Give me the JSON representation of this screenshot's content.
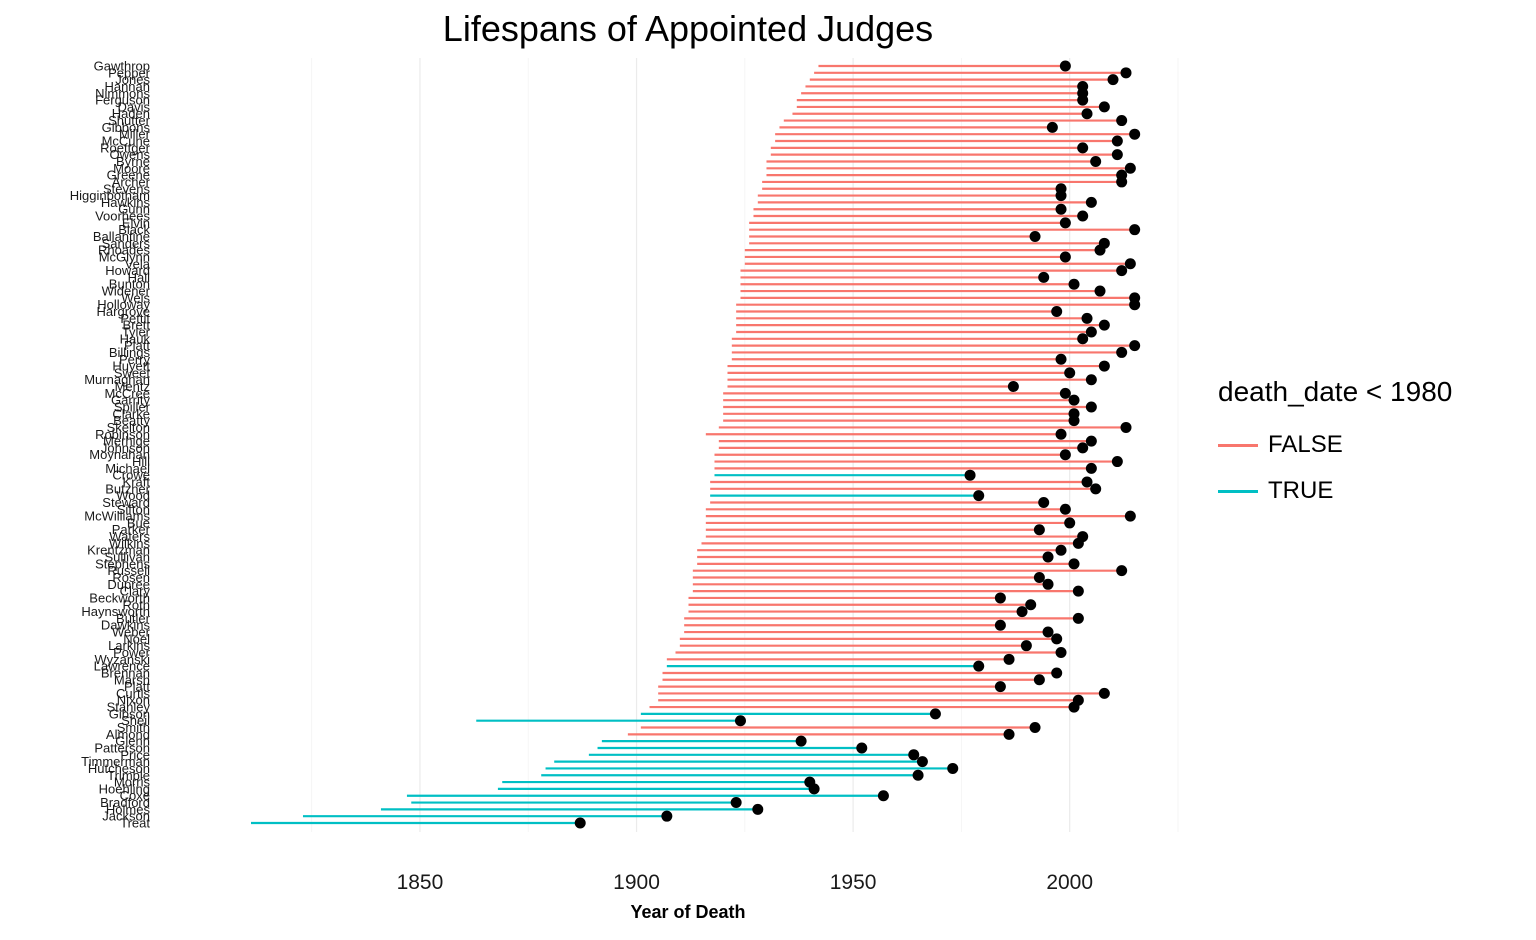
{
  "chart_data": {
    "type": "dumbbell",
    "title": "Lifespans of Appointed Judges",
    "xlabel": "Year of Death",
    "ylabel": "",
    "xlim": [
      1808,
      2016
    ],
    "xticks": [
      1850,
      1900,
      1950,
      2000
    ],
    "grid": true,
    "legend": {
      "title": "death_date < 1980",
      "placement": "right",
      "entries": [
        {
          "label": "FALSE",
          "color": "#f8766d"
        },
        {
          "label": "TRUE",
          "color": "#00bfc4"
        }
      ]
    },
    "judges": [
      {
        "name": "Gawthrop",
        "birth": 1942,
        "death": 1999
      },
      {
        "name": "Pepper",
        "birth": 1941,
        "death": 2013
      },
      {
        "name": "Jones",
        "birth": 1940,
        "death": 2010
      },
      {
        "name": "Hannah",
        "birth": 1939,
        "death": 2003
      },
      {
        "name": "Nimmons",
        "birth": 1938,
        "death": 2003
      },
      {
        "name": "Ferguson",
        "birth": 1937,
        "death": 2003
      },
      {
        "name": "Davis",
        "birth": 1937,
        "death": 2008
      },
      {
        "name": "Haden",
        "birth": 1936,
        "death": 2004
      },
      {
        "name": "Shutter",
        "birth": 1934,
        "death": 2012
      },
      {
        "name": "Gibbons",
        "birth": 1933,
        "death": 1996
      },
      {
        "name": "Miller",
        "birth": 1932,
        "death": 2015
      },
      {
        "name": "McCune",
        "birth": 1932,
        "death": 2011
      },
      {
        "name": "Roettger",
        "birth": 1931,
        "death": 2003
      },
      {
        "name": "Owens",
        "birth": 1931,
        "death": 2011
      },
      {
        "name": "Byrne",
        "birth": 1930,
        "death": 2006
      },
      {
        "name": "Moore",
        "birth": 1930,
        "death": 2014
      },
      {
        "name": "Greene",
        "birth": 1930,
        "death": 2012
      },
      {
        "name": "Archer",
        "birth": 1929,
        "death": 2012
      },
      {
        "name": "Stevens",
        "birth": 1929,
        "death": 1998
      },
      {
        "name": "Higginbotham",
        "birth": 1928,
        "death": 1998
      },
      {
        "name": "Hawkins",
        "birth": 1928,
        "death": 2005
      },
      {
        "name": "Gunn",
        "birth": 1927,
        "death": 1998
      },
      {
        "name": "Voorhees",
        "birth": 1927,
        "death": 2003
      },
      {
        "name": "Elvin",
        "birth": 1926,
        "death": 1999
      },
      {
        "name": "Black",
        "birth": 1926,
        "death": 2015
      },
      {
        "name": "Ballantine",
        "birth": 1926,
        "death": 1992
      },
      {
        "name": "Sanders",
        "birth": 1926,
        "death": 2008
      },
      {
        "name": "Rhoades",
        "birth": 1925,
        "death": 2007
      },
      {
        "name": "McGlynn",
        "birth": 1925,
        "death": 1999
      },
      {
        "name": "Vela",
        "birth": 1925,
        "death": 2014
      },
      {
        "name": "Howard",
        "birth": 1924,
        "death": 2012
      },
      {
        "name": "Hall",
        "birth": 1924,
        "death": 1994
      },
      {
        "name": "Bunton",
        "birth": 1924,
        "death": 2001
      },
      {
        "name": "Widener",
        "birth": 1924,
        "death": 2007
      },
      {
        "name": "Weis",
        "birth": 1924,
        "death": 2015
      },
      {
        "name": "Holloway",
        "birth": 1923,
        "death": 2015
      },
      {
        "name": "Hargrove",
        "birth": 1923,
        "death": 1997
      },
      {
        "name": "Pettit",
        "birth": 1923,
        "death": 2004
      },
      {
        "name": "Brett",
        "birth": 1923,
        "death": 2008
      },
      {
        "name": "Tyler",
        "birth": 1923,
        "death": 2005
      },
      {
        "name": "Hauk",
        "birth": 1922,
        "death": 2003
      },
      {
        "name": "Platt",
        "birth": 1922,
        "death": 2015
      },
      {
        "name": "Billings",
        "birth": 1922,
        "death": 2012
      },
      {
        "name": "Perry",
        "birth": 1922,
        "death": 1998
      },
      {
        "name": "Huyett",
        "birth": 1921,
        "death": 2008
      },
      {
        "name": "Sweet",
        "birth": 1921,
        "death": 2000
      },
      {
        "name": "Murnaghan",
        "birth": 1921,
        "death": 2005
      },
      {
        "name": "Mentz",
        "birth": 1921,
        "death": 1987
      },
      {
        "name": "McCree",
        "birth": 1920,
        "death": 1999
      },
      {
        "name": "Garrity",
        "birth": 1920,
        "death": 2001
      },
      {
        "name": "Spiller",
        "birth": 1920,
        "death": 2005
      },
      {
        "name": "Clarke",
        "birth": 1920,
        "death": 2001
      },
      {
        "name": "Beatty",
        "birth": 1920,
        "death": 2001
      },
      {
        "name": "Skelton",
        "birth": 1919,
        "death": 2013
      },
      {
        "name": "Robinson",
        "birth": 1916,
        "death": 1998
      },
      {
        "name": "Merhige",
        "birth": 1919,
        "death": 2005
      },
      {
        "name": "Johnson",
        "birth": 1919,
        "death": 2003
      },
      {
        "name": "Moynahan",
        "birth": 1918,
        "death": 1999
      },
      {
        "name": "Hill",
        "birth": 1918,
        "death": 2011
      },
      {
        "name": "Michael",
        "birth": 1918,
        "death": 2005
      },
      {
        "name": "Crowe",
        "birth": 1918,
        "death": 1977
      },
      {
        "name": "Kraft",
        "birth": 1917,
        "death": 2004
      },
      {
        "name": "Butzner",
        "birth": 1917,
        "death": 2006
      },
      {
        "name": "Wood",
        "birth": 1917,
        "death": 1979
      },
      {
        "name": "Steward",
        "birth": 1917,
        "death": 1994
      },
      {
        "name": "Sifton",
        "birth": 1916,
        "death": 1999
      },
      {
        "name": "McWilliams",
        "birth": 1916,
        "death": 2014
      },
      {
        "name": "Bue",
        "birth": 1916,
        "death": 2000
      },
      {
        "name": "Parker",
        "birth": 1916,
        "death": 1993
      },
      {
        "name": "Waters",
        "birth": 1916,
        "death": 2003
      },
      {
        "name": "Wilkins",
        "birth": 1915,
        "death": 2002
      },
      {
        "name": "Krentzman",
        "birth": 1914,
        "death": 1998
      },
      {
        "name": "Sullivan",
        "birth": 1914,
        "death": 1995
      },
      {
        "name": "Stephens",
        "birth": 1914,
        "death": 2001
      },
      {
        "name": "Russell",
        "birth": 1913,
        "death": 2012
      },
      {
        "name": "Rosen",
        "birth": 1913,
        "death": 1993
      },
      {
        "name": "Dupree",
        "birth": 1913,
        "death": 1995
      },
      {
        "name": "Clary",
        "birth": 1913,
        "death": 2002
      },
      {
        "name": "Beckworth",
        "birth": 1912,
        "death": 1984
      },
      {
        "name": "Roth",
        "birth": 1912,
        "death": 1991
      },
      {
        "name": "Haynsworth",
        "birth": 1912,
        "death": 1989
      },
      {
        "name": "Butler",
        "birth": 1911,
        "death": 2002
      },
      {
        "name": "Dawkins",
        "birth": 1911,
        "death": 1984
      },
      {
        "name": "Weber",
        "birth": 1911,
        "death": 1995
      },
      {
        "name": "Noel",
        "birth": 1910,
        "death": 1997
      },
      {
        "name": "Larkins",
        "birth": 1910,
        "death": 1990
      },
      {
        "name": "Power",
        "birth": 1909,
        "death": 1998
      },
      {
        "name": "Wyzanski",
        "birth": 1907,
        "death": 1986
      },
      {
        "name": "Lawrence",
        "birth": 1907,
        "death": 1979
      },
      {
        "name": "Brennan",
        "birth": 1906,
        "death": 1997
      },
      {
        "name": "Marsh",
        "birth": 1906,
        "death": 1993
      },
      {
        "name": "Platt",
        "birth": 1905,
        "death": 1984
      },
      {
        "name": "Curtis",
        "birth": 1905,
        "death": 2008
      },
      {
        "name": "Nixon",
        "birth": 1905,
        "death": 2002
      },
      {
        "name": "Stanley",
        "birth": 1903,
        "death": 2001
      },
      {
        "name": "Gibson",
        "birth": 1901,
        "death": 1969
      },
      {
        "name": "Sheil",
        "birth": 1863,
        "death": 1924
      },
      {
        "name": "Smith",
        "birth": 1901,
        "death": 1992
      },
      {
        "name": "Almond",
        "birth": 1898,
        "death": 1986
      },
      {
        "name": "Glenn",
        "birth": 1892,
        "death": 1938
      },
      {
        "name": "Patterson",
        "birth": 1891,
        "death": 1952
      },
      {
        "name": "Price",
        "birth": 1889,
        "death": 1964
      },
      {
        "name": "Timmerman",
        "birth": 1881,
        "death": 1966
      },
      {
        "name": "Hutcheson",
        "birth": 1879,
        "death": 1973
      },
      {
        "name": "Trimble",
        "birth": 1878,
        "death": 1965
      },
      {
        "name": "Morris",
        "birth": 1869,
        "death": 1940
      },
      {
        "name": "Hoehling",
        "birth": 1868,
        "death": 1941
      },
      {
        "name": "Coxe",
        "birth": 1847,
        "death": 1957
      },
      {
        "name": "Bradford",
        "birth": 1848,
        "death": 1923
      },
      {
        "name": "Holmes",
        "birth": 1841,
        "death": 1928
      },
      {
        "name": "Jackson",
        "birth": 1823,
        "death": 1907
      },
      {
        "name": "Treat",
        "birth": 1811,
        "death": 1887
      }
    ]
  }
}
